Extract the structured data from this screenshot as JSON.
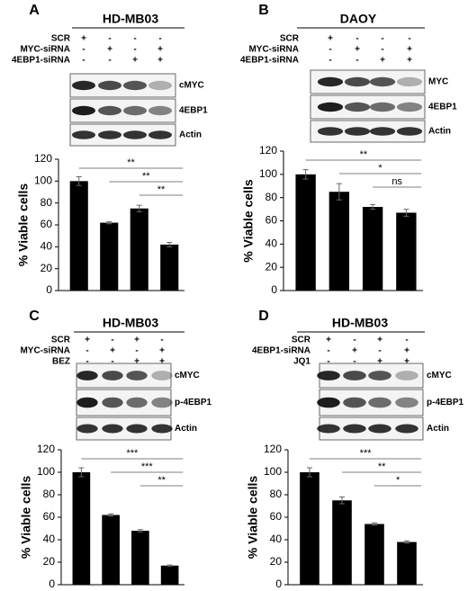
{
  "chart_data": [
    {
      "type": "bar",
      "panel": "A",
      "title": "HD-MB03",
      "conditions": [
        {
          "name": "SCR",
          "signs": [
            "+",
            "-",
            "-",
            "-"
          ]
        },
        {
          "name": "MYC-siRNA",
          "signs": [
            "-",
            "+",
            "-",
            "+"
          ]
        },
        {
          "name": "4EBP1-siRNA",
          "signs": [
            "-",
            "-",
            "+",
            "+"
          ]
        }
      ],
      "blots": [
        "cMYC",
        "4EBP1",
        "Actin"
      ],
      "ylabel": "% Viable cells",
      "values": [
        100,
        62,
        75,
        42
      ],
      "errors": [
        4,
        1,
        3,
        2
      ],
      "color": "#000000",
      "ylim": [
        0,
        120
      ],
      "yticks": [
        0,
        20,
        40,
        60,
        80,
        100,
        120
      ],
      "annotations": [
        "**",
        "**",
        "**"
      ]
    },
    {
      "type": "bar",
      "panel": "B",
      "title": "DAOY",
      "conditions": [
        {
          "name": "SCR",
          "signs": [
            "+",
            "-",
            "-",
            "-"
          ]
        },
        {
          "name": "MYC-siRNA",
          "signs": [
            "-",
            "+",
            "-",
            "+"
          ]
        },
        {
          "name": "4EBP1-siRNA",
          "signs": [
            "-",
            "-",
            "+",
            "+"
          ]
        }
      ],
      "blots": [
        "MYC",
        "4EBP1",
        "Actin"
      ],
      "ylabel": "% Viable cells",
      "values": [
        100,
        85,
        72,
        67
      ],
      "errors": [
        4,
        7,
        2,
        3
      ],
      "color": "#000000",
      "ylim": [
        0,
        120
      ],
      "yticks": [
        0,
        20,
        40,
        60,
        80,
        100,
        120
      ],
      "annotations": [
        "**",
        "*",
        "ns"
      ]
    },
    {
      "type": "bar",
      "panel": "C",
      "title": "HD-MB03",
      "conditions": [
        {
          "name": "SCR",
          "signs": [
            "+",
            "-",
            "+",
            "-"
          ]
        },
        {
          "name": "MYC-siRNA",
          "signs": [
            "-",
            "+",
            "-",
            "+"
          ]
        },
        {
          "name": "BEZ",
          "signs": [
            "-",
            "-",
            "+",
            "+"
          ]
        }
      ],
      "blots": [
        "cMYC",
        "p-4EBP1",
        "Actin"
      ],
      "ylabel": "% Viable cells",
      "values": [
        100,
        62,
        48,
        17
      ],
      "errors": [
        4,
        1,
        1,
        0.5
      ],
      "color": "#000000",
      "ylim": [
        0,
        120
      ],
      "yticks": [
        0,
        20,
        40,
        60,
        80,
        100,
        120
      ],
      "annotations": [
        "***",
        "***",
        "**"
      ]
    },
    {
      "type": "bar",
      "panel": "D",
      "title": "HD-MB03",
      "conditions": [
        {
          "name": "SCR",
          "signs": [
            "+",
            "-",
            "+",
            "-"
          ]
        },
        {
          "name": "4EBP1-siRNA",
          "signs": [
            "-",
            "+",
            "-",
            "+"
          ]
        },
        {
          "name": "JQ1",
          "signs": [
            "-",
            "-",
            "+",
            "+"
          ]
        }
      ],
      "blots": [
        "cMYC",
        "p-4EBP1",
        "Actin"
      ],
      "ylabel": "% Viable cells",
      "values": [
        100,
        75,
        54,
        38
      ],
      "errors": [
        4,
        3,
        1,
        1
      ],
      "color": "#000000",
      "ylim": [
        0,
        120
      ],
      "yticks": [
        0,
        20,
        40,
        60,
        80,
        100,
        120
      ],
      "annotations": [
        "***",
        "**",
        "*"
      ]
    }
  ]
}
